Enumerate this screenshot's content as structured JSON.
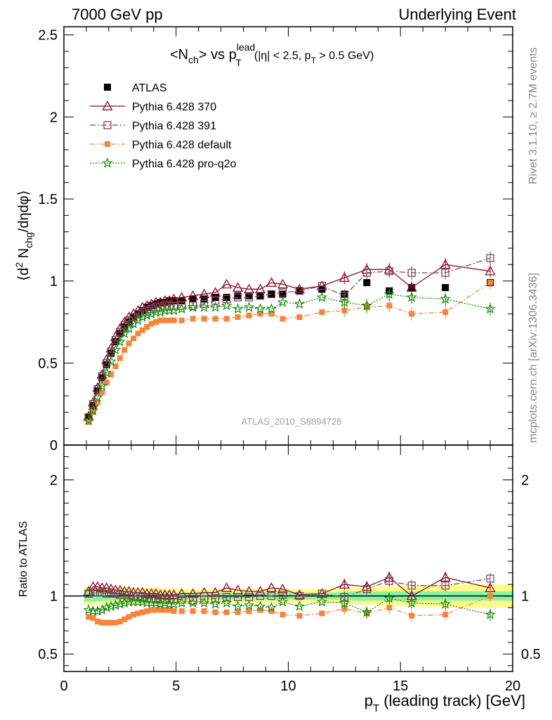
{
  "header": {
    "left": "7000 GeV pp",
    "right": "Underlying Event"
  },
  "side": {
    "rivet": "Rivet 3.1.10, ≥ 2.7M events",
    "mcplots": "mcplots.cern.ch [arXiv:1306.3436]"
  },
  "plot_title": {
    "main": "<N",
    "main_sub": "ch",
    "mid": "> vs p",
    "sup": "lead",
    "sub2": "T",
    "cond": "(|η| < 2.5, p",
    "cond_sub": "T",
    "cond_end": " > 0.5 GeV)"
  },
  "analysis_id": "ATLAS_2010_S8894728",
  "ylabel_main": {
    "a": "⟨d",
    "sup": "2",
    "b": " N",
    "sub": "chg",
    "c": "/dηdφ⟩"
  },
  "ylabel_ratio": "Ratio to ATLAS",
  "xlabel": {
    "a": "p",
    "sub": "T",
    "b": " (leading track) [GeV]"
  },
  "colors": {
    "atlas": "#000000",
    "p370": "#8b0d2a",
    "p391": "#7a4a5a",
    "pdefault": "#f7843a",
    "pq2o": "#1b8a12",
    "band_outer": "#fffb8a",
    "band_inner": "#8af5a0"
  },
  "chart_data": [
    {
      "type": "scatter",
      "panel": "main",
      "xlim": [
        0,
        20
      ],
      "ylim": [
        0,
        2.55
      ],
      "x_ticks": [
        "0",
        "5",
        "10",
        "15",
        "20"
      ],
      "y_ticks": [
        "0",
        "0.5",
        "1",
        "1.5",
        "2",
        "2.5"
      ],
      "legend_position": "top-left",
      "x": [
        1.1,
        1.3,
        1.5,
        1.7,
        1.9,
        2.1,
        2.3,
        2.5,
        2.7,
        2.9,
        3.1,
        3.3,
        3.5,
        3.7,
        3.9,
        4.1,
        4.3,
        4.5,
        4.7,
        4.9,
        5.25,
        5.75,
        6.25,
        6.75,
        7.25,
        7.75,
        8.25,
        8.75,
        9.25,
        9.75,
        10.5,
        11.5,
        12.5,
        13.5,
        14.5,
        15.5,
        17.0,
        19.0
      ],
      "series": [
        {
          "name": "ATLAS",
          "marker": "filled-square",
          "values": [
            0.17,
            0.24,
            0.33,
            0.41,
            0.49,
            0.56,
            0.63,
            0.68,
            0.72,
            0.75,
            0.78,
            0.8,
            0.82,
            0.84,
            0.85,
            0.86,
            0.87,
            0.87,
            0.88,
            0.88,
            0.88,
            0.89,
            0.89,
            0.9,
            0.9,
            0.91,
            0.91,
            0.91,
            0.92,
            0.92,
            0.94,
            0.95,
            0.92,
            0.99,
            0.94,
            0.96,
            0.96,
            0.99
          ]
        },
        {
          "name": "Pythia 6.428 370",
          "marker": "open-triangle",
          "values": [
            0.175,
            0.26,
            0.35,
            0.43,
            0.52,
            0.59,
            0.66,
            0.71,
            0.75,
            0.78,
            0.8,
            0.82,
            0.84,
            0.85,
            0.86,
            0.87,
            0.87,
            0.88,
            0.88,
            0.89,
            0.9,
            0.91,
            0.92,
            0.93,
            0.98,
            0.96,
            0.95,
            0.95,
            0.99,
            0.98,
            0.95,
            0.97,
            1.02,
            1.07,
            1.07,
            0.96,
            1.1,
            1.06
          ]
        },
        {
          "name": "Pythia 6.428 391",
          "marker": "open-square",
          "values": [
            0.17,
            0.25,
            0.34,
            0.42,
            0.5,
            0.57,
            0.64,
            0.69,
            0.73,
            0.76,
            0.78,
            0.8,
            0.81,
            0.82,
            0.83,
            0.84,
            0.84,
            0.85,
            0.85,
            0.85,
            0.85,
            0.85,
            0.86,
            0.88,
            0.89,
            0.9,
            0.9,
            0.91,
            0.92,
            0.93,
            0.94,
            0.97,
            0.91,
            1.05,
            1.06,
            1.05,
            1.05,
            1.14
          ]
        },
        {
          "name": "Pythia 6.428 default",
          "marker": "filled-square",
          "values": [
            0.14,
            0.2,
            0.26,
            0.32,
            0.38,
            0.43,
            0.48,
            0.53,
            0.58,
            0.62,
            0.65,
            0.68,
            0.7,
            0.72,
            0.74,
            0.75,
            0.76,
            0.76,
            0.76,
            0.76,
            0.76,
            0.77,
            0.77,
            0.77,
            0.77,
            0.78,
            0.79,
            0.8,
            0.8,
            0.77,
            0.78,
            0.81,
            0.82,
            0.84,
            0.85,
            0.8,
            0.81,
            0.99
          ]
        },
        {
          "name": "Pythia 6.428 pro-q2o",
          "marker": "open-star",
          "values": [
            0.15,
            0.21,
            0.29,
            0.36,
            0.44,
            0.51,
            0.58,
            0.63,
            0.68,
            0.71,
            0.74,
            0.76,
            0.78,
            0.79,
            0.8,
            0.81,
            0.81,
            0.82,
            0.82,
            0.82,
            0.83,
            0.84,
            0.84,
            0.84,
            0.85,
            0.83,
            0.84,
            0.83,
            0.83,
            0.87,
            0.86,
            0.9,
            0.87,
            0.85,
            0.92,
            0.9,
            0.89,
            0.83
          ]
        }
      ]
    },
    {
      "type": "line",
      "panel": "ratio",
      "xlim": [
        0,
        20
      ],
      "ylim": [
        0.35,
        2.3
      ],
      "x_ticks": [
        "0",
        "5",
        "10",
        "15",
        "20"
      ],
      "y_ticks": [
        "0.5",
        "1",
        "2"
      ],
      "x": [
        1.1,
        1.3,
        1.5,
        1.7,
        1.9,
        2.1,
        2.3,
        2.5,
        2.7,
        2.9,
        3.1,
        3.3,
        3.5,
        3.7,
        3.9,
        4.1,
        4.3,
        4.5,
        4.7,
        4.9,
        5.25,
        5.75,
        6.25,
        6.75,
        7.25,
        7.75,
        8.25,
        8.75,
        9.25,
        9.75,
        10.5,
        11.5,
        12.5,
        13.5,
        14.5,
        15.5,
        17.0,
        19.0
      ],
      "series": [
        {
          "name": "Pythia 6.428 370",
          "values": [
            1.04,
            1.08,
            1.08,
            1.07,
            1.07,
            1.06,
            1.05,
            1.05,
            1.04,
            1.04,
            1.03,
            1.03,
            1.03,
            1.02,
            1.02,
            1.02,
            1.01,
            1.01,
            1.01,
            1.01,
            1.02,
            1.02,
            1.03,
            1.03,
            1.07,
            1.05,
            1.04,
            1.04,
            1.07,
            1.06,
            1.01,
            1.02,
            1.1,
            1.08,
            1.16,
            1.0,
            1.16,
            1.07
          ]
        },
        {
          "name": "Pythia 6.428 391",
          "values": [
            1.02,
            1.03,
            1.03,
            1.03,
            1.02,
            1.02,
            1.02,
            1.01,
            1.01,
            1.01,
            1.0,
            1.0,
            0.99,
            0.98,
            0.98,
            0.98,
            0.97,
            0.97,
            0.97,
            0.97,
            0.97,
            0.96,
            0.97,
            0.98,
            0.99,
            0.99,
            0.99,
            1.0,
            1.0,
            1.01,
            1.0,
            1.02,
            0.99,
            1.06,
            1.13,
            1.09,
            1.09,
            1.15
          ]
        },
        {
          "name": "Pythia 6.428 default",
          "values": [
            0.82,
            0.81,
            0.78,
            0.77,
            0.77,
            0.77,
            0.77,
            0.78,
            0.8,
            0.82,
            0.84,
            0.85,
            0.86,
            0.87,
            0.88,
            0.88,
            0.88,
            0.88,
            0.88,
            0.87,
            0.87,
            0.87,
            0.87,
            0.86,
            0.86,
            0.86,
            0.87,
            0.88,
            0.87,
            0.84,
            0.83,
            0.85,
            0.89,
            0.85,
            0.9,
            0.83,
            0.84,
            1.0
          ]
        },
        {
          "name": "Pythia 6.428 pro-q2o",
          "values": [
            0.88,
            0.87,
            0.87,
            0.88,
            0.9,
            0.91,
            0.92,
            0.93,
            0.94,
            0.95,
            0.95,
            0.95,
            0.95,
            0.94,
            0.94,
            0.94,
            0.93,
            0.94,
            0.93,
            0.93,
            0.94,
            0.94,
            0.94,
            0.93,
            0.94,
            0.91,
            0.92,
            0.91,
            0.9,
            0.95,
            0.91,
            0.95,
            0.94,
            0.86,
            0.98,
            0.94,
            0.93,
            0.84
          ]
        }
      ]
    }
  ]
}
